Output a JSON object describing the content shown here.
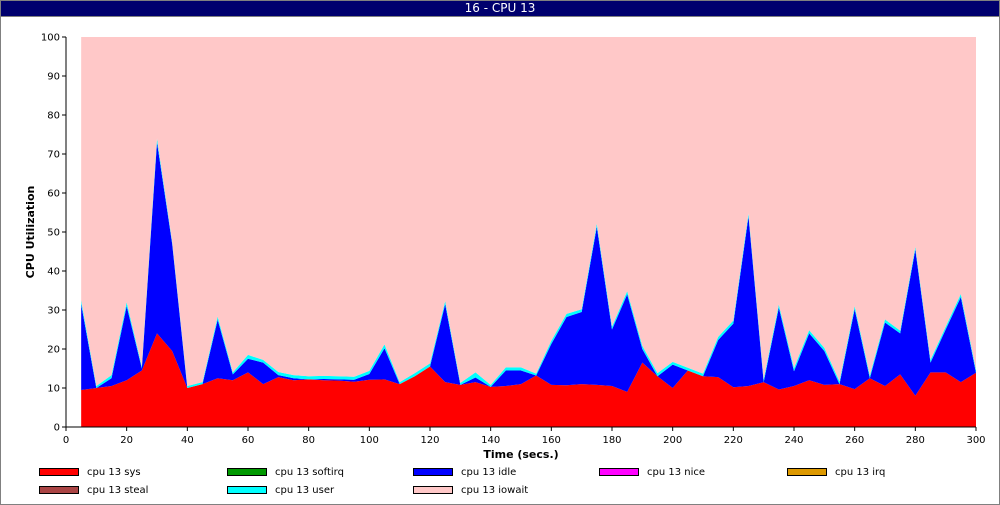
{
  "window": {
    "title": "16 - CPU 13"
  },
  "chart_data": {
    "type": "area",
    "stacked": true,
    "title": "",
    "xlabel": "Time (secs.)",
    "ylabel": "CPU Utilization",
    "xlim": [
      0,
      300
    ],
    "ylim": [
      0,
      100
    ],
    "xticks": [
      "0",
      "20",
      "40",
      "60",
      "80",
      "100",
      "120",
      "140",
      "160",
      "180",
      "200",
      "220",
      "240",
      "260",
      "280",
      "300"
    ],
    "yticks": [
      "0",
      "10",
      "20",
      "30",
      "40",
      "50",
      "60",
      "70",
      "80",
      "90",
      "100"
    ],
    "grid": false,
    "legend_position": "bottom",
    "x": [
      5,
      10,
      15,
      20,
      25,
      30,
      35,
      40,
      45,
      50,
      55,
      60,
      65,
      70,
      75,
      80,
      85,
      90,
      95,
      100,
      105,
      110,
      115,
      120,
      125,
      130,
      135,
      140,
      145,
      150,
      155,
      160,
      165,
      170,
      175,
      180,
      185,
      190,
      195,
      200,
      205,
      210,
      215,
      220,
      225,
      230,
      235,
      240,
      245,
      250,
      255,
      260,
      265,
      270,
      275,
      280,
      285,
      290,
      295,
      300
    ],
    "series": [
      {
        "name": "cpu 13 sys",
        "color": "#ff0000",
        "values": [
          9.5,
          10,
          10.5,
          12,
          14.5,
          24,
          19.5,
          10,
          11,
          12.5,
          12,
          14,
          11,
          12.8,
          12,
          12.2,
          12,
          11.9,
          11.6,
          12.1,
          12.2,
          11,
          13,
          15.5,
          11.5,
          10.8,
          11.5,
          10.3,
          10.5,
          11,
          13.2,
          10.8,
          10.7,
          11,
          10.8,
          10.5,
          9,
          16.5,
          13,
          10,
          14.5,
          13,
          12.8,
          10.2,
          10.5,
          11.5,
          9.6,
          10.5,
          12,
          10.8,
          11,
          9.7,
          12.5,
          10.5,
          13.5,
          8,
          14,
          14,
          11.5,
          13.9
        ]
      },
      {
        "name": "cpu 13 softirq",
        "color": "#009900",
        "values": [
          0,
          0,
          0,
          0,
          0,
          0,
          0,
          0,
          0,
          0,
          0,
          0,
          0,
          0,
          0,
          0,
          0,
          0,
          0,
          0,
          0,
          0,
          0,
          0,
          0,
          0,
          0,
          0,
          0,
          0,
          0,
          0,
          0,
          0,
          0,
          0,
          0,
          0,
          0,
          0,
          0,
          0,
          0,
          0,
          0,
          0,
          0,
          0,
          0,
          0,
          0,
          0,
          0,
          0,
          0,
          0,
          0,
          0,
          0,
          0
        ]
      },
      {
        "name": "cpu 13 idle",
        "color": "#0000ff",
        "values": [
          22,
          0,
          2,
          19,
          0.5,
          49,
          27.5,
          0,
          0,
          15,
          1.5,
          3.5,
          5.5,
          0.5,
          0.5,
          0,
          0.3,
          0.3,
          0.5,
          1.5,
          8,
          0,
          0,
          0,
          20,
          0,
          1.2,
          0,
          4,
          3.5,
          0,
          10.5,
          17.5,
          18.5,
          40.5,
          14.5,
          25,
          3.5,
          0,
          6,
          0,
          0,
          9.5,
          16.3,
          43.5,
          0,
          21,
          3.8,
          12,
          8.7,
          0,
          20.5,
          0,
          16.3,
          10.5,
          37.5,
          2.5,
          11,
          21.8,
          0
        ]
      },
      {
        "name": "cpu 13 nice",
        "color": "#ff00ff",
        "values": [
          0,
          0,
          0,
          0,
          0,
          0,
          0,
          0,
          0,
          0,
          0,
          0,
          0,
          0,
          0,
          0,
          0,
          0,
          0,
          0,
          0,
          0,
          0,
          0,
          0,
          0,
          0,
          0,
          0,
          0,
          0,
          0,
          0,
          0,
          0,
          0,
          0,
          0,
          0,
          0,
          0,
          0,
          0,
          0,
          0,
          0,
          0,
          0,
          0,
          0,
          0,
          0,
          0,
          0,
          0,
          0,
          0,
          0,
          0,
          0
        ]
      },
      {
        "name": "cpu 13 irq",
        "color": "#dd9900",
        "values": [
          0,
          0,
          0,
          0,
          0,
          0,
          0,
          0,
          0,
          0,
          0,
          0,
          0,
          0,
          0,
          0,
          0,
          0,
          0,
          0,
          0,
          0,
          0,
          0,
          0,
          0,
          0,
          0,
          0,
          0,
          0,
          0,
          0,
          0,
          0,
          0,
          0,
          0,
          0,
          0,
          0,
          0,
          0,
          0,
          0,
          0,
          0,
          0,
          0,
          0,
          0,
          0,
          0,
          0,
          0,
          0,
          0,
          0,
          0,
          0
        ]
      },
      {
        "name": "cpu 13 steal",
        "color": "#aa4444",
        "values": [
          0,
          0,
          0,
          0,
          0,
          0,
          0,
          0,
          0,
          0,
          0,
          0,
          0,
          0,
          0,
          0,
          0,
          0,
          0,
          0,
          0,
          0,
          0,
          0,
          0,
          0,
          0,
          0,
          0,
          0,
          0,
          0,
          0,
          0,
          0,
          0,
          0,
          0,
          0,
          0,
          0,
          0,
          0,
          0,
          0,
          0,
          0,
          0,
          0,
          0,
          0,
          0,
          0,
          0,
          0,
          0,
          0,
          0,
          0,
          0
        ]
      },
      {
        "name": "cpu 13 user",
        "color": "#00ffff",
        "values": [
          1,
          0.5,
          0.8,
          1,
          0.5,
          1,
          0.5,
          0.5,
          0.5,
          0.8,
          0.5,
          1,
          0.7,
          0.8,
          0.8,
          0.8,
          0.8,
          0.8,
          0.8,
          0.8,
          1,
          0.5,
          0.8,
          0.8,
          0.8,
          0.5,
          1.3,
          0.5,
          0.8,
          0.8,
          0.5,
          0.8,
          0.8,
          0.7,
          0.8,
          0.7,
          0.8,
          0.8,
          0.8,
          0.7,
          0.7,
          0.7,
          0.8,
          0.8,
          0.8,
          0.7,
          0.8,
          0.8,
          0.8,
          0.8,
          0.7,
          0.8,
          0.7,
          0.8,
          0.7,
          0.7,
          0.7,
          0.7,
          0.8,
          0.7
        ]
      },
      {
        "name": "cpu 13 iowait",
        "color": "#ffc8c8",
        "values": [
          67.5,
          89.5,
          86.7,
          68,
          84.5,
          26,
          52.5,
          89.5,
          88.5,
          71.7,
          86,
          81.5,
          82.8,
          85.9,
          86.7,
          87,
          86.9,
          87,
          87.1,
          85.6,
          78.8,
          88.5,
          86.2,
          83.7,
          67.7,
          88.7,
          86,
          89.2,
          84.7,
          84.7,
          86.3,
          77.9,
          71,
          69.8,
          47.9,
          74.3,
          65.2,
          79.2,
          86.2,
          83.3,
          84.8,
          86.3,
          76.9,
          72.7,
          45.2,
          87.8,
          68.6,
          84.9,
          75.2,
          79.7,
          88.3,
          69,
          86.8,
          72.4,
          75.3,
          53.8,
          82.8,
          74.3,
          65.9,
          85.4
        ]
      }
    ]
  }
}
